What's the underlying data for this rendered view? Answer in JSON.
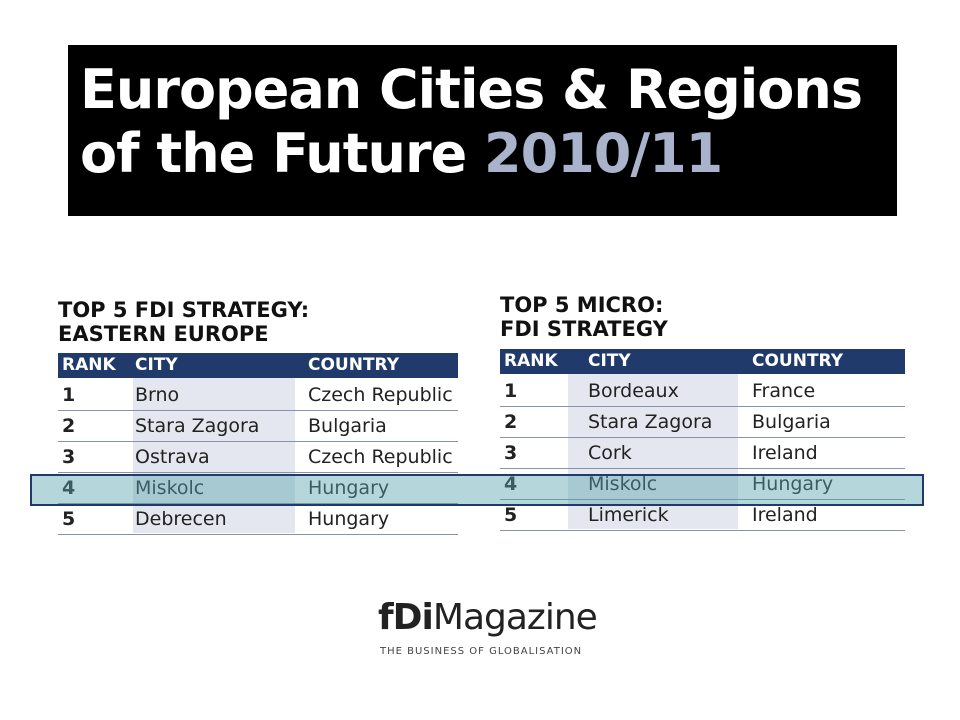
{
  "header": {
    "title_line1": "European Cities & Regions",
    "title_line2": "of the Future",
    "title_year": "2010/11"
  },
  "tables": [
    {
      "title_line1": "TOP 5 FDI STRATEGY:",
      "title_line2": "EASTERN EUROPE",
      "columns": [
        "RANK",
        "CITY",
        "COUNTRY"
      ],
      "rows": [
        [
          "1",
          "Brno",
          "Czech Republic"
        ],
        [
          "2",
          "Stara Zagora",
          "Bulgaria"
        ],
        [
          "3",
          "Ostrava",
          "Czech Republic"
        ],
        [
          "4",
          "Miskolc",
          "Hungary"
        ],
        [
          "5",
          "Debrecen",
          "Hungary"
        ]
      ]
    },
    {
      "title_line1": "TOP 5 MICRO:",
      "title_line2": "FDI STRATEGY",
      "columns": [
        "RANK",
        "CITY",
        "COUNTRY"
      ],
      "rows": [
        [
          "1",
          "Bordeaux",
          "France"
        ],
        [
          "2",
          "Stara Zagora",
          "Bulgaria"
        ],
        [
          "3",
          "Cork",
          "Ireland"
        ],
        [
          "4",
          "Miskolc",
          "Hungary"
        ],
        [
          "5",
          "Limerick",
          "Ireland"
        ]
      ]
    }
  ],
  "logo": {
    "brand_prefix": "fDi",
    "brand_name": "Magazine",
    "tagline": "THE BUSINESS OF GLOBALISATION"
  }
}
